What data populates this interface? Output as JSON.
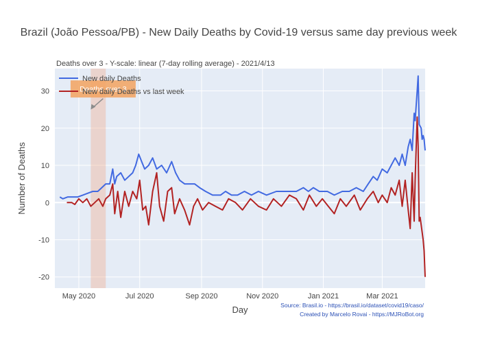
{
  "chart_data": {
    "type": "line",
    "title": "Brazil (João Pessoa/PB) - New Daily Deaths by Covid-19 versus same day previous week",
    "subtitle": "Deaths over 3 - Y-scale: linear (7-day rolling average) - 2021/4/13",
    "xlabel": "Day",
    "ylabel": "Number of Deaths",
    "x_ticks": [
      "May 2020",
      "Jul 2020",
      "Sep 2020",
      "Nov 2020",
      "Jan 2021",
      "Mar 2021"
    ],
    "x_tick_dates": [
      "2020-05-01",
      "2020-07-01",
      "2020-09-01",
      "2020-11-01",
      "2021-01-01",
      "2021-03-01"
    ],
    "xlim": [
      "2020-04-07",
      "2021-04-13"
    ],
    "ylim": [
      -23,
      36
    ],
    "y_ticks": [
      -20,
      -10,
      0,
      10,
      20,
      30
    ],
    "grid": true,
    "legend_position": "top-left",
    "highlight_band": [
      "2020-05-13",
      "2020-05-28"
    ],
    "annotation": {
      "text": "Deaths over 3",
      "x": "2020-05-13",
      "y": 25
    },
    "series": [
      {
        "name": "New daily Deaths",
        "color": "#4169e1",
        "points": [
          [
            "2020-04-12",
            1.5
          ],
          [
            "2020-04-15",
            1
          ],
          [
            "2020-04-20",
            1.5
          ],
          [
            "2020-04-25",
            1.5
          ],
          [
            "2020-04-30",
            1.5
          ],
          [
            "2020-05-05",
            2
          ],
          [
            "2020-05-10",
            2.5
          ],
          [
            "2020-05-15",
            3
          ],
          [
            "2020-05-20",
            3
          ],
          [
            "2020-05-24",
            4
          ],
          [
            "2020-05-28",
            5
          ],
          [
            "2020-06-01",
            5
          ],
          [
            "2020-06-04",
            9
          ],
          [
            "2020-06-06",
            5
          ],
          [
            "2020-06-08",
            7
          ],
          [
            "2020-06-12",
            8
          ],
          [
            "2020-06-16",
            6
          ],
          [
            "2020-06-20",
            7
          ],
          [
            "2020-06-24",
            8
          ],
          [
            "2020-06-27",
            10
          ],
          [
            "2020-06-30",
            13
          ],
          [
            "2020-07-03",
            11
          ],
          [
            "2020-07-06",
            9
          ],
          [
            "2020-07-10",
            10
          ],
          [
            "2020-07-14",
            12
          ],
          [
            "2020-07-18",
            9
          ],
          [
            "2020-07-23",
            10
          ],
          [
            "2020-07-28",
            8
          ],
          [
            "2020-08-02",
            11
          ],
          [
            "2020-08-06",
            8
          ],
          [
            "2020-08-10",
            6
          ],
          [
            "2020-08-15",
            5
          ],
          [
            "2020-08-20",
            5
          ],
          [
            "2020-08-25",
            5
          ],
          [
            "2020-08-30",
            4
          ],
          [
            "2020-09-05",
            3
          ],
          [
            "2020-09-12",
            2
          ],
          [
            "2020-09-20",
            2
          ],
          [
            "2020-09-25",
            3
          ],
          [
            "2020-10-01",
            2
          ],
          [
            "2020-10-07",
            2
          ],
          [
            "2020-10-14",
            3
          ],
          [
            "2020-10-21",
            2
          ],
          [
            "2020-10-28",
            3
          ],
          [
            "2020-11-05",
            2
          ],
          [
            "2020-11-15",
            3
          ],
          [
            "2020-11-25",
            3
          ],
          [
            "2020-12-05",
            3
          ],
          [
            "2020-12-12",
            4
          ],
          [
            "2020-12-17",
            3
          ],
          [
            "2020-12-22",
            4
          ],
          [
            "2020-12-28",
            3
          ],
          [
            "2021-01-05",
            3
          ],
          [
            "2021-01-12",
            2
          ],
          [
            "2021-01-20",
            3
          ],
          [
            "2021-01-27",
            3
          ],
          [
            "2021-02-03",
            4
          ],
          [
            "2021-02-10",
            3
          ],
          [
            "2021-02-15",
            5
          ],
          [
            "2021-02-20",
            7
          ],
          [
            "2021-02-24",
            6
          ],
          [
            "2021-03-01",
            9
          ],
          [
            "2021-03-06",
            8
          ],
          [
            "2021-03-10",
            10
          ],
          [
            "2021-03-14",
            12
          ],
          [
            "2021-03-18",
            10
          ],
          [
            "2021-03-21",
            13
          ],
          [
            "2021-03-24",
            10
          ],
          [
            "2021-03-27",
            15
          ],
          [
            "2021-03-29",
            17
          ],
          [
            "2021-03-31",
            14
          ],
          [
            "2021-04-02",
            24
          ],
          [
            "2021-04-03",
            22
          ],
          [
            "2021-04-05",
            30
          ],
          [
            "2021-04-06",
            34
          ],
          [
            "2021-04-07",
            21
          ],
          [
            "2021-04-09",
            20
          ],
          [
            "2021-04-10",
            17
          ],
          [
            "2021-04-11",
            18
          ],
          [
            "2021-04-12",
            17
          ],
          [
            "2021-04-13",
            14
          ]
        ]
      },
      {
        "name": "New daily Deaths vs last week",
        "color": "#b22222",
        "points": [
          [
            "2020-04-19",
            0
          ],
          [
            "2020-04-24",
            0
          ],
          [
            "2020-04-27",
            -0.5
          ],
          [
            "2020-05-01",
            1
          ],
          [
            "2020-05-05",
            0
          ],
          [
            "2020-05-09",
            1
          ],
          [
            "2020-05-13",
            -1
          ],
          [
            "2020-05-17",
            0
          ],
          [
            "2020-05-21",
            1
          ],
          [
            "2020-05-25",
            -1
          ],
          [
            "2020-05-28",
            1
          ],
          [
            "2020-06-01",
            2
          ],
          [
            "2020-06-04",
            5
          ],
          [
            "2020-06-06",
            -3
          ],
          [
            "2020-06-09",
            3
          ],
          [
            "2020-06-12",
            -4
          ],
          [
            "2020-06-16",
            3
          ],
          [
            "2020-06-20",
            -1
          ],
          [
            "2020-06-24",
            3
          ],
          [
            "2020-06-28",
            1
          ],
          [
            "2020-07-01",
            6
          ],
          [
            "2020-07-04",
            -2
          ],
          [
            "2020-07-07",
            -1
          ],
          [
            "2020-07-10",
            -6
          ],
          [
            "2020-07-14",
            3
          ],
          [
            "2020-07-18",
            8
          ],
          [
            "2020-07-21",
            -1
          ],
          [
            "2020-07-25",
            -5
          ],
          [
            "2020-07-29",
            3
          ],
          [
            "2020-08-02",
            4
          ],
          [
            "2020-08-05",
            -3
          ],
          [
            "2020-08-10",
            1
          ],
          [
            "2020-08-15",
            -2
          ],
          [
            "2020-08-20",
            -6
          ],
          [
            "2020-08-24",
            -1
          ],
          [
            "2020-08-28",
            1
          ],
          [
            "2020-09-02",
            -2
          ],
          [
            "2020-09-08",
            0
          ],
          [
            "2020-09-15",
            -1
          ],
          [
            "2020-09-22",
            -2
          ],
          [
            "2020-09-28",
            1
          ],
          [
            "2020-10-05",
            0
          ],
          [
            "2020-10-12",
            -2
          ],
          [
            "2020-10-20",
            1
          ],
          [
            "2020-10-28",
            -1
          ],
          [
            "2020-11-05",
            -2
          ],
          [
            "2020-11-12",
            1
          ],
          [
            "2020-11-20",
            -1
          ],
          [
            "2020-11-28",
            2
          ],
          [
            "2020-12-05",
            1
          ],
          [
            "2020-12-12",
            -2
          ],
          [
            "2020-12-18",
            2
          ],
          [
            "2020-12-25",
            -1
          ],
          [
            "2020-12-31",
            1
          ],
          [
            "2021-01-06",
            -1
          ],
          [
            "2021-01-12",
            -3
          ],
          [
            "2021-01-18",
            1
          ],
          [
            "2021-01-24",
            -1
          ],
          [
            "2021-02-01",
            2
          ],
          [
            "2021-02-07",
            -2
          ],
          [
            "2021-02-14",
            1
          ],
          [
            "2021-02-20",
            3
          ],
          [
            "2021-02-25",
            0
          ],
          [
            "2021-03-01",
            2
          ],
          [
            "2021-03-06",
            0
          ],
          [
            "2021-03-10",
            4
          ],
          [
            "2021-03-14",
            2
          ],
          [
            "2021-03-18",
            6
          ],
          [
            "2021-03-21",
            -1
          ],
          [
            "2021-03-24",
            6
          ],
          [
            "2021-03-27",
            -2
          ],
          [
            "2021-03-29",
            -7
          ],
          [
            "2021-03-31",
            8
          ],
          [
            "2021-04-02",
            -5
          ],
          [
            "2021-04-03",
            6
          ],
          [
            "2021-04-05",
            23
          ],
          [
            "2021-04-06",
            15
          ],
          [
            "2021-04-07",
            -5
          ],
          [
            "2021-04-08",
            -4
          ],
          [
            "2021-04-09",
            -6
          ],
          [
            "2021-04-11",
            -10
          ],
          [
            "2021-04-12",
            -13
          ],
          [
            "2021-04-13",
            -20
          ]
        ]
      }
    ],
    "source_lines": [
      "Source: Brasil.io - https://brasil.io/dataset/covid19/caso/",
      "Created by Marcelo Rovai - https://MJRoBot.org"
    ]
  }
}
